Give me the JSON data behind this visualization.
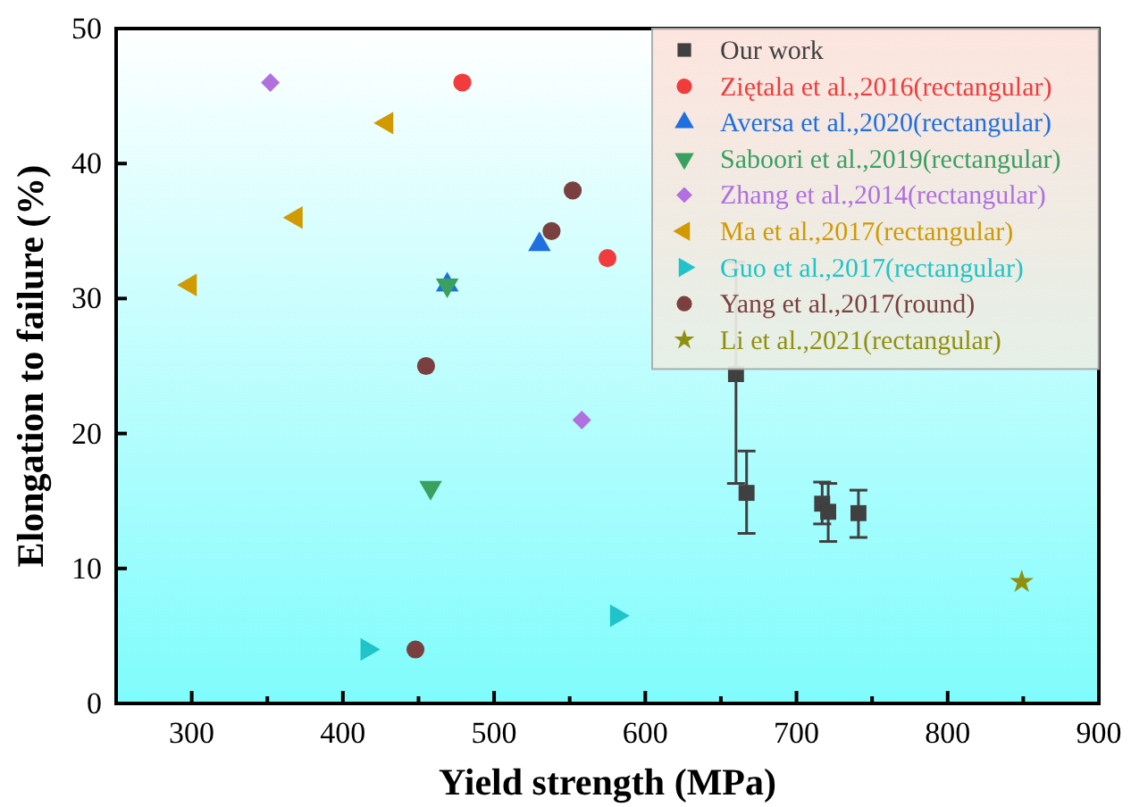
{
  "chart_data": {
    "type": "scatter",
    "xlabel": "Yield strength (MPa)",
    "ylabel": "Elongation to failure (%)",
    "xlim": [
      250,
      900
    ],
    "ylim": [
      0,
      50
    ],
    "xticks": [
      {
        "value": 250,
        "label": null
      },
      300,
      {
        "value": 350,
        "label": null
      },
      400,
      {
        "value": 450,
        "label": null
      },
      500,
      {
        "value": 550,
        "label": null
      },
      600,
      {
        "value": 650,
        "label": null
      },
      700,
      {
        "value": 750,
        "label": null
      },
      800,
      {
        "value": 850,
        "label": null
      },
      900
    ],
    "yticks": [
      0,
      10,
      20,
      30,
      40,
      50
    ],
    "grid": false,
    "legend": "top right",
    "series": [
      {
        "name": "Our work",
        "color": "#404040",
        "marker": "square",
        "x": [
          660,
          667,
          717,
          721,
          741
        ],
        "values": [
          24.4,
          15.6,
          14.8,
          14.2,
          14.1
        ],
        "errors": [
          [
            16.3,
            32.7
          ],
          [
            12.6,
            18.7
          ],
          [
            13.3,
            16.4
          ],
          [
            12.0,
            16.3
          ],
          [
            12.3,
            15.8
          ]
        ]
      },
      {
        "name": "Ziętala et al.,2016(rectangular)",
        "color": "#f03c3c",
        "marker": "circle",
        "x": [
          479,
          575
        ],
        "values": [
          46,
          33
        ]
      },
      {
        "name": "Aversa et al.,2020(rectangular)",
        "color": "#1f6fe0",
        "marker": "triangle",
        "x": [
          530,
          469
        ],
        "values": [
          34,
          31
        ]
      },
      {
        "name": "Saboori et al.,2019(rectangular)",
        "color": "#3aa060",
        "marker": "triangle-down",
        "x": [
          469,
          458
        ],
        "values": [
          31,
          16
        ]
      },
      {
        "name": "Zhang et al.,2014(rectangular)",
        "color": "#b070e0",
        "marker": "diamond",
        "x": [
          352,
          558
        ],
        "values": [
          46,
          21
        ]
      },
      {
        "name": "Ma et al.,2017(rectangular)",
        "color": "#d09a00",
        "marker": "triangle-left",
        "x": [
          429,
          369,
          299
        ],
        "values": [
          43,
          36,
          31
        ]
      },
      {
        "name": "Guo et al.,2017(rectangular)",
        "color": "#20c4c8",
        "marker": "triangle-right",
        "x": [
          581,
          416
        ],
        "values": [
          6.5,
          4
        ]
      },
      {
        "name": "Yang et al.,2017(round)",
        "color": "#7a4040",
        "marker": "circle",
        "x": [
          552,
          538,
          455,
          448
        ],
        "values": [
          38,
          35,
          25,
          4
        ]
      },
      {
        "name": "Li et al.,2021(rectangular)",
        "color": "#909010",
        "marker": "star",
        "x": [
          849
        ],
        "values": [
          9
        ]
      }
    ]
  }
}
